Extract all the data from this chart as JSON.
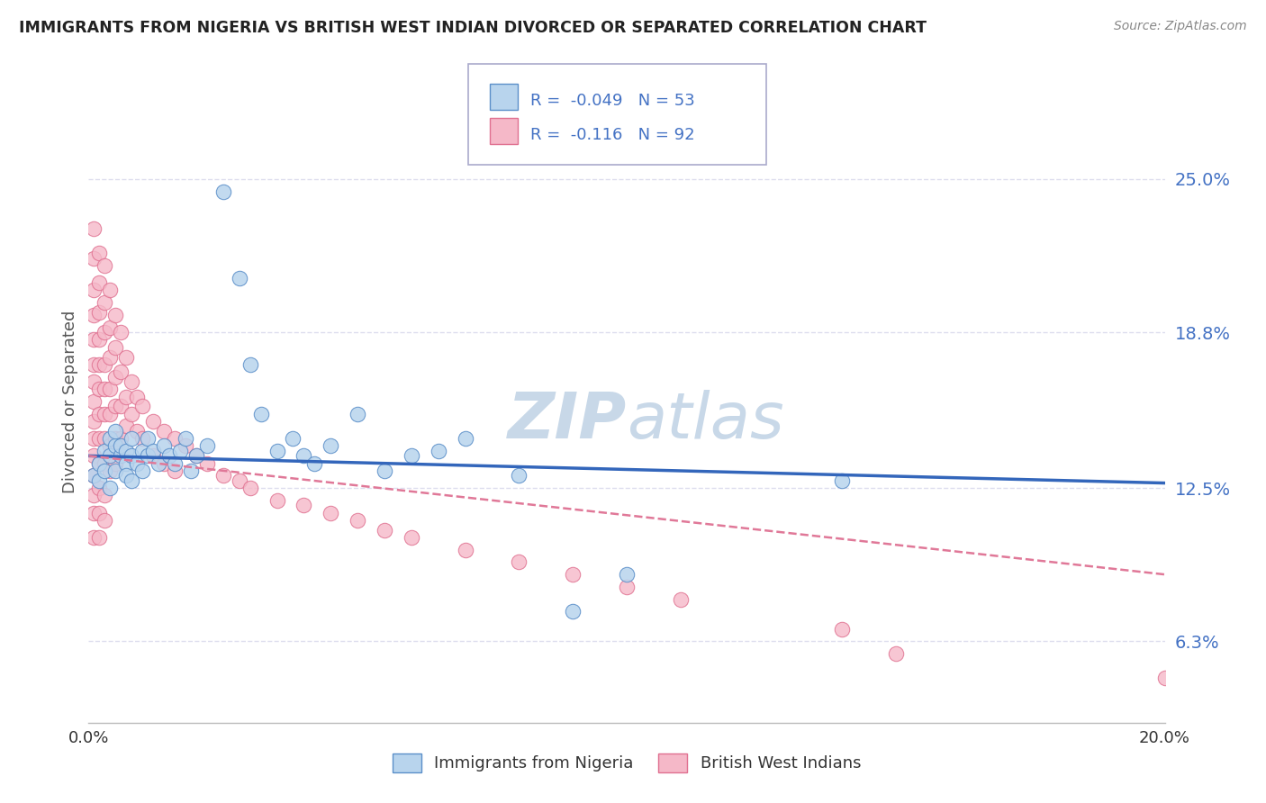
{
  "title": "IMMIGRANTS FROM NIGERIA VS BRITISH WEST INDIAN DIVORCED OR SEPARATED CORRELATION CHART",
  "source": "Source: ZipAtlas.com",
  "ylabel": "Divorced or Separated",
  "ytick_labels": [
    "6.3%",
    "12.5%",
    "18.8%",
    "25.0%"
  ],
  "ytick_values": [
    0.063,
    0.125,
    0.188,
    0.25
  ],
  "xlim": [
    0.0,
    0.2
  ],
  "ylim": [
    0.03,
    0.29
  ],
  "legend_bottom": [
    "Immigrants from Nigeria",
    "British West Indians"
  ],
  "nigeria_color": "#b8d4ed",
  "bwi_color": "#f5b8c8",
  "nigeria_edge_color": "#5b8fc9",
  "bwi_edge_color": "#e07090",
  "nigeria_line_color": "#3366bb",
  "bwi_line_color": "#e07898",
  "background_color": "#ffffff",
  "grid_color": "#ddddee",
  "title_color": "#222222",
  "label_color": "#555555",
  "source_color": "#888888",
  "watermark_text": "ZIP atlas",
  "watermark_color": "#c8d8e8",
  "nigeria_scatter": [
    [
      0.001,
      0.13
    ],
    [
      0.002,
      0.135
    ],
    [
      0.002,
      0.128
    ],
    [
      0.003,
      0.14
    ],
    [
      0.003,
      0.132
    ],
    [
      0.004,
      0.138
    ],
    [
      0.004,
      0.145
    ],
    [
      0.004,
      0.125
    ],
    [
      0.005,
      0.142
    ],
    [
      0.005,
      0.132
    ],
    [
      0.005,
      0.148
    ],
    [
      0.006,
      0.138
    ],
    [
      0.006,
      0.142
    ],
    [
      0.007,
      0.135
    ],
    [
      0.007,
      0.14
    ],
    [
      0.007,
      0.13
    ],
    [
      0.008,
      0.138
    ],
    [
      0.008,
      0.145
    ],
    [
      0.008,
      0.128
    ],
    [
      0.009,
      0.135
    ],
    [
      0.01,
      0.14
    ],
    [
      0.01,
      0.132
    ],
    [
      0.011,
      0.138
    ],
    [
      0.011,
      0.145
    ],
    [
      0.012,
      0.14
    ],
    [
      0.013,
      0.135
    ],
    [
      0.014,
      0.142
    ],
    [
      0.015,
      0.138
    ],
    [
      0.016,
      0.135
    ],
    [
      0.017,
      0.14
    ],
    [
      0.018,
      0.145
    ],
    [
      0.019,
      0.132
    ],
    [
      0.02,
      0.138
    ],
    [
      0.022,
      0.142
    ],
    [
      0.025,
      0.245
    ],
    [
      0.028,
      0.21
    ],
    [
      0.03,
      0.175
    ],
    [
      0.032,
      0.155
    ],
    [
      0.035,
      0.14
    ],
    [
      0.038,
      0.145
    ],
    [
      0.04,
      0.138
    ],
    [
      0.042,
      0.135
    ],
    [
      0.045,
      0.142
    ],
    [
      0.05,
      0.155
    ],
    [
      0.055,
      0.132
    ],
    [
      0.06,
      0.138
    ],
    [
      0.065,
      0.14
    ],
    [
      0.07,
      0.145
    ],
    [
      0.08,
      0.13
    ],
    [
      0.09,
      0.075
    ],
    [
      0.1,
      0.09
    ],
    [
      0.14,
      0.128
    ]
  ],
  "bwi_scatter": [
    [
      0.001,
      0.23
    ],
    [
      0.001,
      0.218
    ],
    [
      0.001,
      0.205
    ],
    [
      0.001,
      0.195
    ],
    [
      0.001,
      0.185
    ],
    [
      0.001,
      0.175
    ],
    [
      0.001,
      0.168
    ],
    [
      0.001,
      0.16
    ],
    [
      0.001,
      0.152
    ],
    [
      0.001,
      0.145
    ],
    [
      0.001,
      0.138
    ],
    [
      0.001,
      0.13
    ],
    [
      0.001,
      0.122
    ],
    [
      0.001,
      0.115
    ],
    [
      0.001,
      0.105
    ],
    [
      0.002,
      0.22
    ],
    [
      0.002,
      0.208
    ],
    [
      0.002,
      0.196
    ],
    [
      0.002,
      0.185
    ],
    [
      0.002,
      0.175
    ],
    [
      0.002,
      0.165
    ],
    [
      0.002,
      0.155
    ],
    [
      0.002,
      0.145
    ],
    [
      0.002,
      0.135
    ],
    [
      0.002,
      0.125
    ],
    [
      0.002,
      0.115
    ],
    [
      0.002,
      0.105
    ],
    [
      0.003,
      0.215
    ],
    [
      0.003,
      0.2
    ],
    [
      0.003,
      0.188
    ],
    [
      0.003,
      0.175
    ],
    [
      0.003,
      0.165
    ],
    [
      0.003,
      0.155
    ],
    [
      0.003,
      0.145
    ],
    [
      0.003,
      0.135
    ],
    [
      0.003,
      0.122
    ],
    [
      0.003,
      0.112
    ],
    [
      0.004,
      0.205
    ],
    [
      0.004,
      0.19
    ],
    [
      0.004,
      0.178
    ],
    [
      0.004,
      0.165
    ],
    [
      0.004,
      0.155
    ],
    [
      0.004,
      0.142
    ],
    [
      0.004,
      0.132
    ],
    [
      0.005,
      0.195
    ],
    [
      0.005,
      0.182
    ],
    [
      0.005,
      0.17
    ],
    [
      0.005,
      0.158
    ],
    [
      0.005,
      0.145
    ],
    [
      0.005,
      0.135
    ],
    [
      0.006,
      0.188
    ],
    [
      0.006,
      0.172
    ],
    [
      0.006,
      0.158
    ],
    [
      0.006,
      0.145
    ],
    [
      0.007,
      0.178
    ],
    [
      0.007,
      0.162
    ],
    [
      0.007,
      0.15
    ],
    [
      0.008,
      0.168
    ],
    [
      0.008,
      0.155
    ],
    [
      0.009,
      0.162
    ],
    [
      0.009,
      0.148
    ],
    [
      0.01,
      0.158
    ],
    [
      0.01,
      0.145
    ],
    [
      0.012,
      0.152
    ],
    [
      0.012,
      0.138
    ],
    [
      0.014,
      0.148
    ],
    [
      0.014,
      0.135
    ],
    [
      0.016,
      0.145
    ],
    [
      0.016,
      0.132
    ],
    [
      0.018,
      0.142
    ],
    [
      0.02,
      0.138
    ],
    [
      0.022,
      0.135
    ],
    [
      0.025,
      0.13
    ],
    [
      0.028,
      0.128
    ],
    [
      0.03,
      0.125
    ],
    [
      0.035,
      0.12
    ],
    [
      0.04,
      0.118
    ],
    [
      0.045,
      0.115
    ],
    [
      0.05,
      0.112
    ],
    [
      0.055,
      0.108
    ],
    [
      0.06,
      0.105
    ],
    [
      0.07,
      0.1
    ],
    [
      0.08,
      0.095
    ],
    [
      0.09,
      0.09
    ],
    [
      0.1,
      0.085
    ],
    [
      0.11,
      0.08
    ],
    [
      0.14,
      0.068
    ],
    [
      0.15,
      0.058
    ],
    [
      0.2,
      0.048
    ]
  ]
}
